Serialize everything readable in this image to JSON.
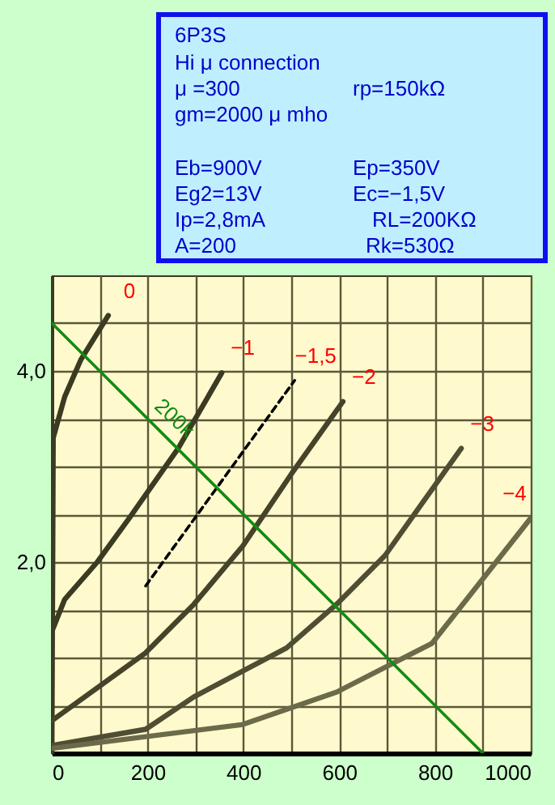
{
  "chart_data": {
    "type": "line",
    "title": "6P3S",
    "annotations": [
      "Hi μ  connection",
      "μ =300",
      "rp=150kΩ",
      "gm=2000 μ mho",
      "Eb=900V",
      "Ep=350V",
      "Eg2=13V",
      "Ec=−1,5V",
      "Ip=2,8mA",
      "RL=200KΩ",
      "A=200",
      "Rk=530Ω"
    ],
    "series": [
      {
        "name": "0",
        "color": "#3b3a22",
        "x": [
          0,
          2,
          3,
          27,
          61,
          118
        ],
        "values": [
          0,
          2.0,
          3.3,
          3.73,
          4.12,
          4.58
        ]
      },
      {
        "name": "−1",
        "color": "#3b3a22",
        "x": [
          0,
          0,
          27,
          95,
          162,
          264,
          355
        ],
        "values": [
          0,
          1.27,
          1.61,
          2.0,
          2.46,
          3.19,
          3.98
        ]
      },
      {
        "name": "−1,5",
        "color": "#000000",
        "line_style": "dashed",
        "x": [
          196,
          507
        ],
        "values": [
          1.75,
          3.9
        ]
      },
      {
        "name": "−2",
        "color": "#45432a",
        "x": [
          0,
          196,
          297,
          399,
          500,
          608
        ],
        "values": [
          0.34,
          1.05,
          1.56,
          2.17,
          2.92,
          3.68
        ]
      },
      {
        "name": "−3",
        "color": "#4f4d33",
        "x": [
          0,
          196,
          297,
          490,
          595,
          696,
          855
        ],
        "values": [
          0.08,
          0.25,
          0.59,
          1.1,
          1.56,
          2.07,
          3.19
        ]
      },
      {
        "name": "−4",
        "color": "#6b6a4a",
        "x": [
          0,
          399,
          595,
          794,
          1000
        ],
        "values": [
          0.05,
          0.3,
          0.64,
          1.15,
          2.46
        ]
      },
      {
        "name": "200k",
        "color": "#138a13",
        "x": [
          0,
          900
        ],
        "values": [
          4.5,
          0
        ]
      }
    ],
    "xlim": [
      0,
      1000
    ],
    "ylim": [
      0,
      5
    ],
    "xticks": [
      0,
      {
        "value": 100,
        "label": null
      },
      200,
      {
        "value": 300,
        "label": null
      },
      400,
      {
        "value": 500,
        "label": null
      },
      600,
      {
        "value": 700,
        "label": null
      },
      800,
      {
        "value": 900,
        "label": null
      },
      1000
    ],
    "yticks": [
      {
        "value": 0,
        "label": null
      },
      {
        "value": 0.5,
        "label": null
      },
      {
        "value": 1,
        "label": null
      },
      {
        "value": 1.5,
        "label": null
      },
      {
        "value": 2,
        "label": "2,0"
      },
      {
        "value": 2.5,
        "label": null
      },
      {
        "value": 3,
        "label": null
      },
      {
        "value": 3.5,
        "label": null
      },
      {
        "value": 4,
        "label": "4,0"
      },
      {
        "value": 4.5,
        "label": null
      }
    ],
    "grid": true
  }
}
